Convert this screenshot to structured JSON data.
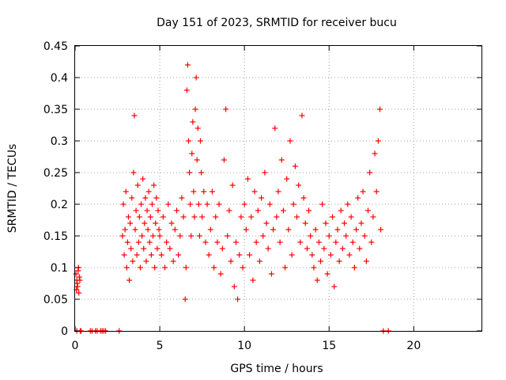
{
  "chart_data": {
    "type": "scatter",
    "title": "Day 151 of 2023, SRMTID for receiver bucu",
    "xlabel": "GPS time / hours",
    "ylabel": "SRMTID / TECUs",
    "xlim": [
      0,
      24
    ],
    "ylim": [
      0,
      0.45
    ],
    "xticks": [
      0,
      5,
      10,
      15,
      20
    ],
    "yticks": [
      0,
      0.05,
      0.1,
      0.15,
      0.2,
      0.25,
      0.3,
      0.35,
      0.4,
      0.45
    ],
    "xtick_labels": [
      "0",
      "5",
      "10",
      "15",
      "20"
    ],
    "ytick_labels": [
      "0",
      "0.05",
      "0.1",
      "0.15",
      "0.2",
      "0.25",
      "0.3",
      "0.35",
      "0.4",
      "0.45"
    ],
    "grid": true,
    "marker": "+",
    "color": "#ff0000",
    "series": [
      {
        "name": "SRMTID",
        "x": [
          0.05,
          0.1,
          0.15,
          0.2,
          0.22,
          0.25,
          0.12,
          0.18,
          0.08,
          0.28,
          2.8,
          2.85,
          2.9,
          2.95,
          3.0,
          3.05,
          3.1,
          3.15,
          3.2,
          3.25,
          3.3,
          3.35,
          3.4,
          3.45,
          3.5,
          3.55,
          3.6,
          3.65,
          3.7,
          3.75,
          3.8,
          3.85,
          3.9,
          3.95,
          4.0,
          4.05,
          4.1,
          4.15,
          4.2,
          4.25,
          4.3,
          4.35,
          4.4,
          4.45,
          4.5,
          4.55,
          4.6,
          4.65,
          4.7,
          4.75,
          4.8,
          4.85,
          4.9,
          4.95,
          5.0,
          5.1,
          5.2,
          5.3,
          5.4,
          5.5,
          5.6,
          5.7,
          5.8,
          5.9,
          6.0,
          6.1,
          6.2,
          6.3,
          6.4,
          6.5,
          6.55,
          6.6,
          6.65,
          6.7,
          6.75,
          6.8,
          6.85,
          6.9,
          6.95,
          7.0,
          7.05,
          7.1,
          7.15,
          7.2,
          7.25,
          7.3,
          7.35,
          7.4,
          7.45,
          7.5,
          7.6,
          7.7,
          7.8,
          7.9,
          8.0,
          8.1,
          8.2,
          8.3,
          8.4,
          8.5,
          8.6,
          8.7,
          8.8,
          8.9,
          9.0,
          9.1,
          9.2,
          9.3,
          9.4,
          9.5,
          9.6,
          9.7,
          9.8,
          9.9,
          10.0,
          10.1,
          10.2,
          10.3,
          10.4,
          10.5,
          10.6,
          10.7,
          10.8,
          10.9,
          11.0,
          11.1,
          11.2,
          11.3,
          11.4,
          11.5,
          11.6,
          11.7,
          11.8,
          11.9,
          12.0,
          12.1,
          12.2,
          12.3,
          12.4,
          12.5,
          12.6,
          12.7,
          12.8,
          12.9,
          13.0,
          13.1,
          13.2,
          13.3,
          13.4,
          13.5,
          13.6,
          13.7,
          13.8,
          13.9,
          14.0,
          14.1,
          14.2,
          14.3,
          14.4,
          14.5,
          14.6,
          14.7,
          14.8,
          14.9,
          15.0,
          15.1,
          15.2,
          15.3,
          15.4,
          15.5,
          15.6,
          15.7,
          15.8,
          15.9,
          16.0,
          16.1,
          16.2,
          16.3,
          16.4,
          16.5,
          16.6,
          16.7,
          16.8,
          16.9,
          17.0,
          17.1,
          17.2,
          17.3,
          17.4,
          17.5,
          17.6,
          17.7,
          17.8,
          17.9,
          18.0,
          18.05
        ],
        "y": [
          0.09,
          0.08,
          0.07,
          0.1,
          0.06,
          0.085,
          0.075,
          0.095,
          0.065,
          0.08,
          0.15,
          0.2,
          0.12,
          0.16,
          0.22,
          0.1,
          0.14,
          0.18,
          0.08,
          0.17,
          0.13,
          0.21,
          0.11,
          0.25,
          0.34,
          0.16,
          0.19,
          0.12,
          0.23,
          0.14,
          0.18,
          0.1,
          0.2,
          0.15,
          0.24,
          0.13,
          0.17,
          0.21,
          0.11,
          0.19,
          0.16,
          0.22,
          0.14,
          0.18,
          0.12,
          0.2,
          0.15,
          0.23,
          0.1,
          0.17,
          0.21,
          0.13,
          0.19,
          0.16,
          0.15,
          0.12,
          0.18,
          0.1,
          0.14,
          0.2,
          0.13,
          0.17,
          0.11,
          0.16,
          0.19,
          0.12,
          0.15,
          0.21,
          0.18,
          0.05,
          0.1,
          0.38,
          0.42,
          0.3,
          0.25,
          0.2,
          0.15,
          0.28,
          0.33,
          0.22,
          0.18,
          0.35,
          0.4,
          0.27,
          0.32,
          0.2,
          0.15,
          0.3,
          0.25,
          0.18,
          0.22,
          0.14,
          0.2,
          0.12,
          0.16,
          0.22,
          0.1,
          0.18,
          0.14,
          0.2,
          0.09,
          0.13,
          0.27,
          0.35,
          0.15,
          0.19,
          0.11,
          0.23,
          0.07,
          0.14,
          0.05,
          0.12,
          0.18,
          0.1,
          0.2,
          0.16,
          0.24,
          0.12,
          0.18,
          0.08,
          0.22,
          0.14,
          0.19,
          0.11,
          0.21,
          0.15,
          0.25,
          0.17,
          0.13,
          0.2,
          0.09,
          0.16,
          0.32,
          0.18,
          0.22,
          0.14,
          0.27,
          0.19,
          0.1,
          0.24,
          0.16,
          0.3,
          0.12,
          0.2,
          0.26,
          0.18,
          0.23,
          0.14,
          0.34,
          0.21,
          0.17,
          0.13,
          0.19,
          0.15,
          0.12,
          0.1,
          0.16,
          0.08,
          0.14,
          0.11,
          0.2,
          0.13,
          0.17,
          0.09,
          0.15,
          0.12,
          0.18,
          0.07,
          0.14,
          0.16,
          0.11,
          0.19,
          0.13,
          0.17,
          0.15,
          0.2,
          0.12,
          0.18,
          0.14,
          0.1,
          0.16,
          0.21,
          0.13,
          0.17,
          0.22,
          0.15,
          0.11,
          0.19,
          0.25,
          0.14,
          0.18,
          0.28,
          0.22,
          0.3,
          0.35,
          0.16
        ],
        "zero_x": [
          0.1,
          0.3,
          0.35,
          0.9,
          1.0,
          1.2,
          1.3,
          1.5,
          1.6,
          1.7,
          1.8,
          2.6,
          18.2,
          18.5
        ]
      }
    ]
  }
}
